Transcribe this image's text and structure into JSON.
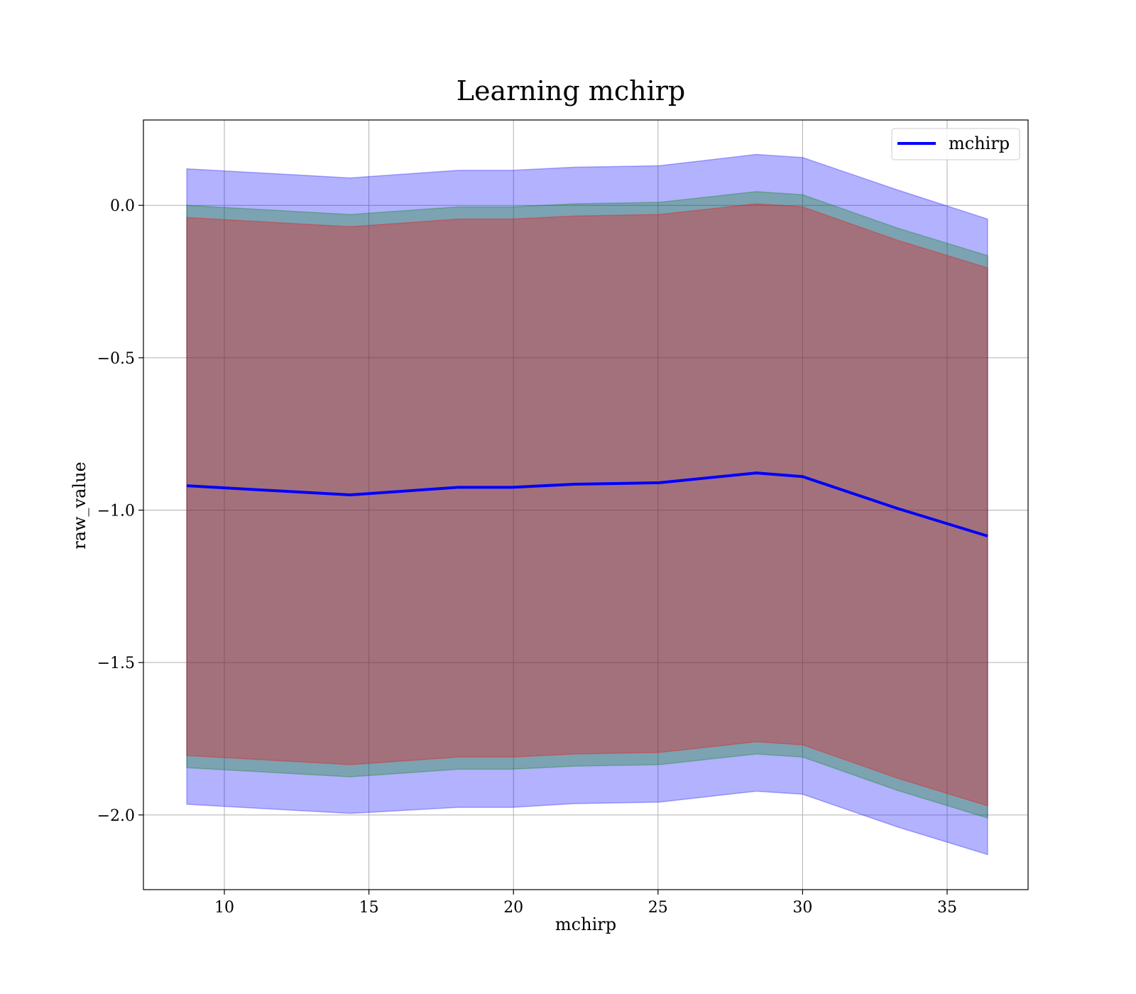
{
  "chart_data": {
    "type": "line",
    "title": "Learning mchirp",
    "xlabel": "mchirp",
    "ylabel": "raw_value",
    "xlim": [
      7.2,
      37.8
    ],
    "ylim": [
      -2.245,
      0.28
    ],
    "grid": true,
    "legend": "top-right",
    "xticks": [
      10,
      15,
      20,
      25,
      30,
      35
    ],
    "yticks": [
      0.0,
      -0.5,
      -1.0,
      -1.5,
      -2.0
    ],
    "xtick_labels": [
      "10",
      "15",
      "20",
      "25",
      "30",
      "35"
    ],
    "ytick_labels": [
      "0.0",
      "−0.5",
      "−1.0",
      "−1.5",
      "−2.0"
    ],
    "x": [
      8.7,
      14.35,
      18.1,
      19.95,
      22.1,
      25.05,
      28.4,
      30.0,
      33.3,
      36.4
    ],
    "series": [
      {
        "name": "mchirp",
        "color": "#0000ff",
        "values": [
          -0.92,
          -0.95,
          -0.925,
          -0.925,
          -0.915,
          -0.91,
          -0.878,
          -0.89,
          -0.995,
          -1.085
        ]
      }
    ],
    "bands": [
      {
        "color": "#0000ff",
        "upper": [
          0.12,
          0.09,
          0.115,
          0.115,
          0.125,
          0.13,
          0.167,
          0.157,
          0.05,
          -0.045
        ],
        "lower": [
          -1.965,
          -1.995,
          -1.975,
          -1.975,
          -1.963,
          -1.958,
          -1.922,
          -1.932,
          -2.04,
          -2.13
        ]
      },
      {
        "color": "#008000",
        "upper": [
          0.0,
          -0.03,
          -0.005,
          -0.005,
          0.005,
          0.01,
          0.045,
          0.035,
          -0.075,
          -0.165
        ],
        "lower": [
          -1.845,
          -1.875,
          -1.85,
          -1.85,
          -1.84,
          -1.835,
          -1.8,
          -1.81,
          -1.92,
          -2.01
        ]
      },
      {
        "color": "#ff0000",
        "upper": [
          -0.04,
          -0.07,
          -0.045,
          -0.045,
          -0.035,
          -0.03,
          0.005,
          -0.005,
          -0.115,
          -0.205
        ],
        "lower": [
          -1.805,
          -1.835,
          -1.81,
          -1.81,
          -1.8,
          -1.795,
          -1.76,
          -1.77,
          -1.88,
          -1.97
        ]
      }
    ]
  }
}
